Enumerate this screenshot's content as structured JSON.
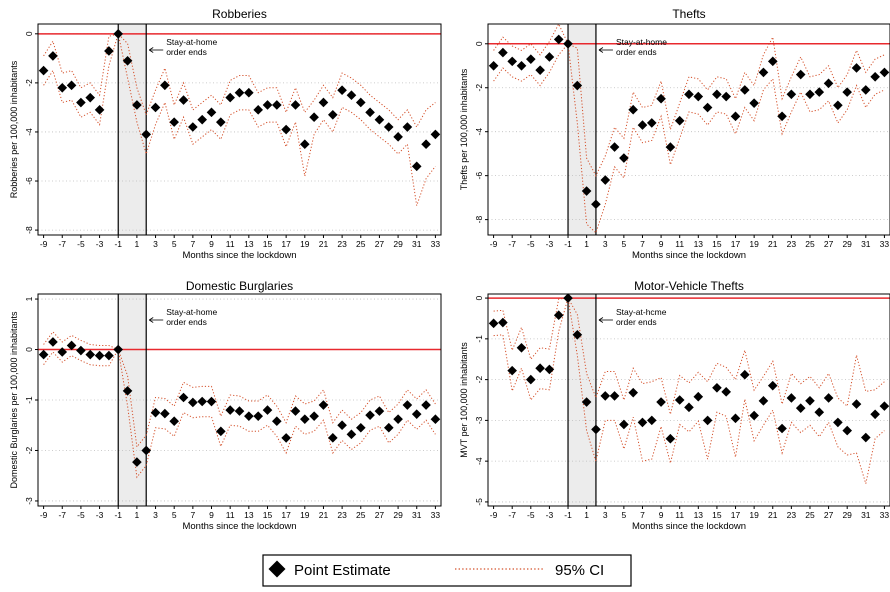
{
  "legend": {
    "point_estimate": "Point Estimate",
    "ci": "95% CI"
  },
  "colors": {
    "zero_line": "#e8292e",
    "ci": "#d4502a",
    "shade": "#ececec",
    "point": "#000000",
    "grid": "#bdbdbd"
  },
  "chart_data": [
    {
      "type": "scatter",
      "title": "Robberies",
      "xlabel": "Months since the lockdown",
      "ylabel": "Robberies per 100,000 inhabitants",
      "xlim": [
        -9.6,
        33.6
      ],
      "ylim": [
        -8.2,
        0.4
      ],
      "yticks": [
        0,
        -2,
        -4,
        -6,
        -8
      ],
      "xticks": [
        -9,
        -7,
        -5,
        -3,
        -1,
        1,
        3,
        5,
        7,
        9,
        11,
        13,
        15,
        17,
        19,
        21,
        23,
        25,
        27,
        29,
        31,
        33
      ],
      "grid": true,
      "shaded_region": [
        -1,
        2
      ],
      "annotation": "Stay-at-home\norder ends",
      "x": [
        -9,
        -8,
        -7,
        -6,
        -5,
        -4,
        -3,
        -2,
        -1,
        0,
        1,
        2,
        3,
        4,
        5,
        6,
        7,
        8,
        9,
        10,
        11,
        12,
        13,
        14,
        15,
        16,
        17,
        18,
        19,
        20,
        21,
        22,
        23,
        24,
        25,
        26,
        27,
        28,
        29,
        30,
        31,
        32,
        33
      ],
      "values": [
        -1.5,
        -0.9,
        -2.2,
        -2.1,
        -2.8,
        -2.6,
        -3.1,
        -0.7,
        0,
        -1.1,
        -2.9,
        -4.1,
        -3.0,
        -2.1,
        -3.6,
        -2.7,
        -3.8,
        -3.5,
        -3.2,
        -3.6,
        -2.6,
        -2.4,
        -2.4,
        -3.1,
        -2.9,
        -2.9,
        -3.9,
        -2.9,
        -4.5,
        -3.4,
        -2.8,
        -3.3,
        -2.3,
        -2.5,
        -2.8,
        -3.2,
        -3.5,
        -3.8,
        -4.2,
        -3.8,
        -5.4,
        -4.5,
        -4.1
      ],
      "ci_lower": [
        -2.1,
        -1.5,
        -2.8,
        -2.7,
        -3.4,
        -3.2,
        -3.7,
        -1.3,
        0,
        -1.8,
        -3.6,
        -4.9,
        -3.7,
        -2.8,
        -4.3,
        -3.4,
        -4.5,
        -4.2,
        -3.9,
        -4.3,
        -3.3,
        -3.1,
        -3.1,
        -3.8,
        -3.6,
        -3.6,
        -4.6,
        -3.6,
        -5.8,
        -4.1,
        -3.5,
        -4.0,
        -3.0,
        -3.2,
        -3.5,
        -3.9,
        -4.2,
        -4.5,
        -4.9,
        -4.5,
        -7.0,
        -5.9,
        -5.4
      ],
      "ci_upper": [
        -0.9,
        -0.3,
        -1.6,
        -1.5,
        -2.2,
        -2.0,
        -2.5,
        -0.1,
        0,
        -0.4,
        -2.2,
        -3.3,
        -2.3,
        -1.4,
        -2.9,
        -2.0,
        -3.1,
        -2.8,
        -2.5,
        -2.9,
        -1.9,
        -1.7,
        -1.7,
        -2.4,
        -2.2,
        -2.2,
        -3.2,
        -2.2,
        -3.2,
        -2.7,
        -2.1,
        -2.6,
        -1.6,
        -1.8,
        -2.1,
        -2.5,
        -2.8,
        -3.1,
        -3.5,
        -3.1,
        -3.8,
        -3.1,
        -2.8
      ]
    },
    {
      "type": "scatter",
      "title": "Thefts",
      "xlabel": "Months since the lockdown",
      "ylabel": "Thefts per 100,000 inhabitants",
      "xlim": [
        -9.6,
        33.6
      ],
      "ylim": [
        -8.7,
        0.9
      ],
      "yticks": [
        0,
        -2,
        -4,
        -6,
        -8
      ],
      "xticks": [
        -9,
        -7,
        -5,
        -3,
        -1,
        1,
        3,
        5,
        7,
        9,
        11,
        13,
        15,
        17,
        19,
        21,
        23,
        25,
        27,
        29,
        31,
        33
      ],
      "grid": true,
      "shaded_region": [
        -1,
        2
      ],
      "annotation": "Stay-at-home\norder ends",
      "x": [
        -9,
        -8,
        -7,
        -6,
        -5,
        -4,
        -3,
        -2,
        -1,
        0,
        1,
        2,
        3,
        4,
        5,
        6,
        7,
        8,
        9,
        10,
        11,
        12,
        13,
        14,
        15,
        16,
        17,
        18,
        19,
        20,
        21,
        22,
        23,
        24,
        25,
        26,
        27,
        28,
        29,
        30,
        31,
        32,
        33
      ],
      "values": [
        -1.0,
        -0.4,
        -0.8,
        -1.0,
        -0.7,
        -1.2,
        -0.6,
        0.2,
        0,
        -1.9,
        -6.7,
        -7.3,
        -6.2,
        -4.7,
        -5.2,
        -3.0,
        -3.7,
        -3.6,
        -2.5,
        -4.7,
        -3.5,
        -2.3,
        -2.4,
        -2.9,
        -2.3,
        -2.4,
        -3.3,
        -2.1,
        -2.7,
        -1.3,
        -0.8,
        -3.3,
        -2.3,
        -1.4,
        -2.3,
        -2.2,
        -1.8,
        -2.8,
        -2.2,
        -1.1,
        -2.1,
        -1.5,
        -1.3
      ],
      "ci_lower": [
        -1.7,
        -1.1,
        -1.5,
        -1.7,
        -1.4,
        -1.9,
        -1.3,
        -0.5,
        0,
        -3.6,
        -8.2,
        -8.6,
        -7.3,
        -5.6,
        -6.1,
        -3.8,
        -4.5,
        -4.4,
        -3.3,
        -5.5,
        -4.3,
        -3.1,
        -3.2,
        -3.7,
        -3.1,
        -3.2,
        -4.1,
        -2.9,
        -3.5,
        -2.1,
        -1.6,
        -4.1,
        -3.1,
        -2.2,
        -3.1,
        -3.0,
        -2.6,
        -3.6,
        -3.0,
        -1.9,
        -2.9,
        -2.3,
        -2.1
      ],
      "ci_upper": [
        -0.3,
        0.3,
        -0.1,
        -0.3,
        0.0,
        -0.5,
        0.1,
        0.9,
        0,
        -0.2,
        -5.2,
        -6.0,
        -5.1,
        -3.8,
        -4.3,
        -2.2,
        -2.9,
        -2.8,
        -1.7,
        -3.9,
        -2.7,
        -1.5,
        -1.6,
        -2.1,
        -1.5,
        -1.6,
        -2.5,
        -1.3,
        -1.9,
        -0.5,
        0.3,
        -2.5,
        -1.5,
        -0.6,
        -1.5,
        -1.4,
        -1.0,
        -2.0,
        -1.4,
        -0.3,
        -1.3,
        -0.7,
        -0.5
      ]
    },
    {
      "type": "scatter",
      "title": "Domestic Burglaries",
      "xlabel": "Months since the lockdown",
      "ylabel": "Domestic Burglaries per 100,000 inhabitants",
      "xlim": [
        -9.6,
        33.6
      ],
      "ylim": [
        -3.1,
        1.1
      ],
      "yticks": [
        1,
        0,
        -1,
        -2,
        -3
      ],
      "xticks": [
        -9,
        -7,
        -5,
        -3,
        -1,
        1,
        3,
        5,
        7,
        9,
        11,
        13,
        15,
        17,
        19,
        21,
        23,
        25,
        27,
        29,
        31,
        33
      ],
      "grid": true,
      "shaded_region": [
        -1,
        2
      ],
      "annotation": "Stay-at-home\norder ends",
      "x": [
        -9,
        -8,
        -7,
        -6,
        -5,
        -4,
        -3,
        -2,
        -1,
        0,
        1,
        2,
        3,
        4,
        5,
        6,
        7,
        8,
        9,
        10,
        11,
        12,
        13,
        14,
        15,
        16,
        17,
        18,
        19,
        20,
        21,
        22,
        23,
        24,
        25,
        26,
        27,
        28,
        29,
        30,
        31,
        32,
        33
      ],
      "values": [
        -0.1,
        0.15,
        -0.05,
        0.08,
        -0.02,
        -0.1,
        -0.12,
        -0.12,
        0,
        -0.82,
        -2.23,
        -2.0,
        -1.25,
        -1.27,
        -1.42,
        -0.95,
        -1.05,
        -1.03,
        -1.03,
        -1.62,
        -1.2,
        -1.22,
        -1.32,
        -1.32,
        -1.2,
        -1.42,
        -1.75,
        -1.22,
        -1.38,
        -1.32,
        -1.1,
        -1.75,
        -1.5,
        -1.68,
        -1.55,
        -1.3,
        -1.22,
        -1.55,
        -1.38,
        -1.1,
        -1.28,
        -1.1,
        -1.38
      ],
      "ci_lower": [
        -0.3,
        -0.05,
        -0.25,
        -0.12,
        -0.22,
        -0.3,
        -0.32,
        -0.32,
        0,
        -1.12,
        -2.53,
        -2.3,
        -1.55,
        -1.57,
        -1.72,
        -1.25,
        -1.35,
        -1.33,
        -1.33,
        -1.92,
        -1.5,
        -1.52,
        -1.62,
        -1.62,
        -1.5,
        -1.72,
        -2.05,
        -1.52,
        -1.68,
        -1.62,
        -1.4,
        -2.05,
        -1.8,
        -1.98,
        -1.85,
        -1.6,
        -1.52,
        -1.85,
        -1.68,
        -1.4,
        -1.58,
        -1.4,
        -1.68
      ],
      "ci_upper": [
        0.1,
        0.35,
        0.15,
        0.28,
        0.18,
        0.1,
        0.08,
        0.08,
        0,
        -0.52,
        -1.93,
        -1.7,
        -0.95,
        -0.97,
        -1.12,
        -0.65,
        -0.75,
        -0.73,
        -0.73,
        -1.32,
        -0.9,
        -0.92,
        -1.02,
        -1.02,
        -0.9,
        -1.12,
        -1.45,
        -0.92,
        -1.08,
        -1.02,
        -0.8,
        -1.45,
        -1.2,
        -1.38,
        -1.25,
        -1.0,
        -0.92,
        -1.25,
        -1.08,
        -0.8,
        -0.98,
        -0.8,
        -1.08
      ]
    },
    {
      "type": "scatter",
      "title": "Motor-Vehicle Thefts",
      "xlabel": "Months since the lockdown",
      "ylabel": "MVT per 100,000 inhabitants",
      "xlim": [
        -9.6,
        33.6
      ],
      "ylim": [
        -5.1,
        0.1
      ],
      "yticks": [
        0,
        -1,
        -2,
        -3,
        -4,
        -5
      ],
      "xticks": [
        -9,
        -7,
        -5,
        -3,
        -1,
        1,
        3,
        5,
        7,
        9,
        11,
        13,
        15,
        17,
        19,
        21,
        23,
        25,
        27,
        29,
        31,
        33
      ],
      "grid": true,
      "shaded_region": [
        -1,
        2
      ],
      "annotation": "Stay-at-hcme\norder ends",
      "x": [
        -9,
        -8,
        -7,
        -6,
        -5,
        -4,
        -3,
        -2,
        -1,
        0,
        1,
        2,
        3,
        4,
        5,
        6,
        7,
        8,
        9,
        10,
        11,
        12,
        13,
        14,
        15,
        16,
        17,
        18,
        19,
        20,
        21,
        22,
        23,
        24,
        25,
        26,
        27,
        28,
        29,
        30,
        31,
        32,
        33
      ],
      "values": [
        -0.62,
        -0.6,
        -1.78,
        -1.22,
        -2.0,
        -1.72,
        -1.75,
        -0.42,
        0,
        -0.9,
        -2.55,
        -3.22,
        -2.4,
        -2.4,
        -3.1,
        -2.32,
        -3.05,
        -3.0,
        -2.55,
        -3.45,
        -2.5,
        -2.68,
        -2.42,
        -3.0,
        -2.2,
        -2.3,
        -2.95,
        -1.88,
        -2.88,
        -2.52,
        -2.15,
        -3.2,
        -2.45,
        -2.7,
        -2.52,
        -2.8,
        -2.45,
        -3.05,
        -3.25,
        -2.6,
        -3.42,
        -2.85,
        -2.65
      ],
      "ci_lower": [
        -0.92,
        -0.9,
        -2.28,
        -1.72,
        -2.5,
        -2.22,
        -2.25,
        -0.82,
        0,
        -1.4,
        -3.25,
        -4.0,
        -3.0,
        -3.0,
        -3.7,
        -2.92,
        -4.0,
        -3.95,
        -3.15,
        -4.05,
        -3.1,
        -3.28,
        -3.02,
        -3.95,
        -2.8,
        -2.9,
        -3.9,
        -2.48,
        -3.5,
        -3.12,
        -2.75,
        -3.8,
        -3.05,
        -3.3,
        -3.12,
        -3.4,
        -3.05,
        -3.65,
        -3.85,
        -3.8,
        -4.55,
        -3.45,
        -3.25
      ],
      "ci_upper": [
        -0.32,
        -0.3,
        -1.28,
        -0.72,
        -1.5,
        -1.22,
        -1.25,
        -0.02,
        0,
        -0.4,
        -1.85,
        -2.44,
        -1.8,
        -1.8,
        -2.5,
        -1.72,
        -2.1,
        -2.05,
        -1.95,
        -2.85,
        -1.9,
        -2.08,
        -1.82,
        -2.05,
        -1.6,
        -1.7,
        -2.0,
        -1.28,
        -2.26,
        -1.92,
        -1.55,
        -2.6,
        -1.85,
        -2.1,
        -1.92,
        -2.2,
        -1.85,
        -2.45,
        -2.65,
        -1.4,
        -2.29,
        -2.25,
        -2.05
      ]
    }
  ]
}
